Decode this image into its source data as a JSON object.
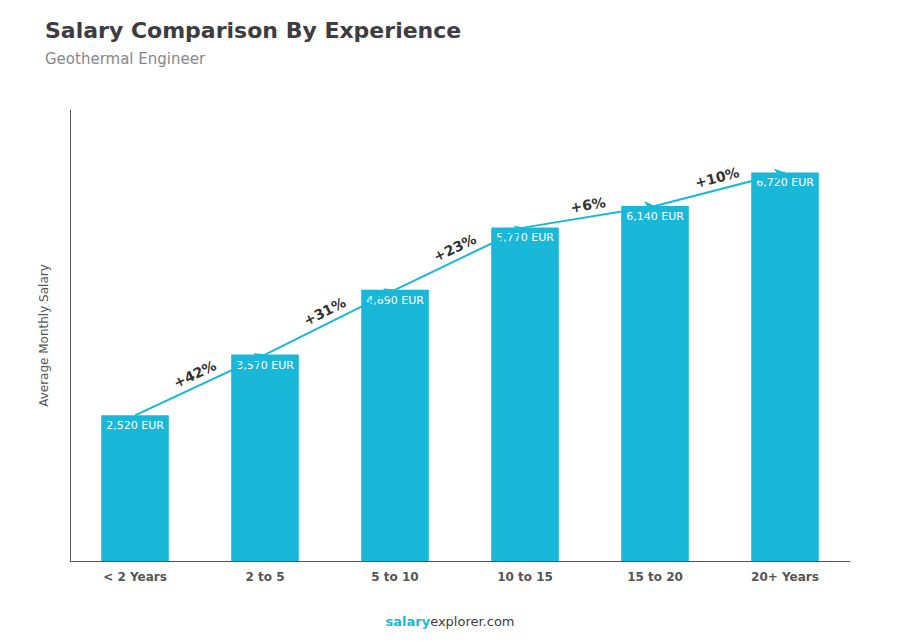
{
  "chart_data": {
    "type": "bar",
    "title": "Salary Comparison By Experience",
    "subtitle": "Geothermal Engineer",
    "categories": [
      "< 2 Years",
      "2 to 5",
      "5 to 10",
      "10 to 15",
      "15 to 20",
      "20+ Years"
    ],
    "values": [
      2520,
      3570,
      4690,
      5770,
      6140,
      6720
    ],
    "value_labels": [
      "2,520 EUR",
      "3,570 EUR",
      "4,690 EUR",
      "5,770 EUR",
      "6,140 EUR",
      "6,720 EUR"
    ],
    "data_labels": true,
    "color": "#1ab8d8",
    "ylabel": "Average Monthly Salary",
    "ylim": [
      0,
      7800
    ],
    "tick_labels": "x",
    "grid": false,
    "annotations": [
      "+42%",
      "+31%",
      "+23%",
      "+6%",
      "+10%"
    ],
    "footer_bold": "salary",
    "footer_normal": "explorer.com"
  }
}
